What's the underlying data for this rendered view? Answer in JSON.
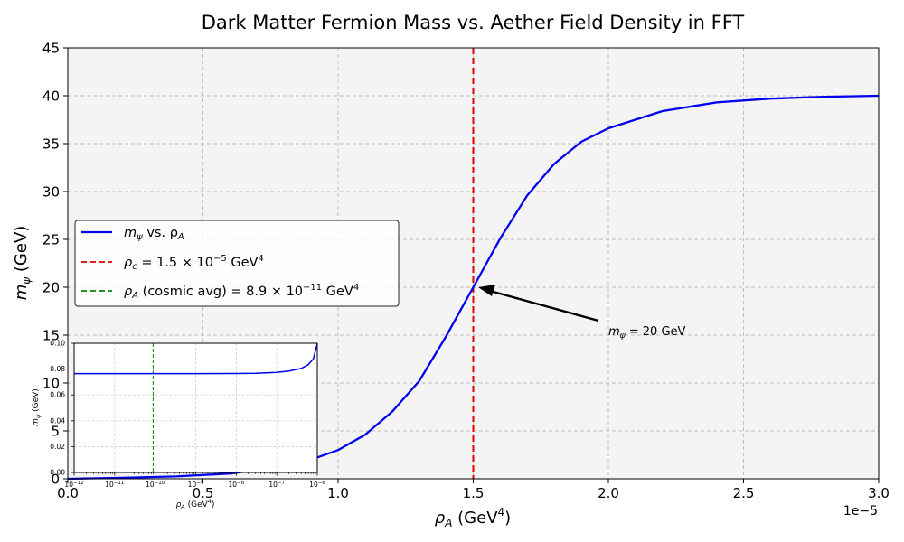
{
  "chart_data": [
    {
      "type": "line",
      "title": "Dark Matter Fermion Mass vs. Aether Field Density in FFT",
      "xlabel_main": "ρ",
      "xlabel_sub": "A",
      "xlabel_rest": " (GeV",
      "xlabel_sup": "4",
      "xlabel_end": ")",
      "ylabel_main": "m",
      "ylabel_sub": "ψ",
      "ylabel_rest": " (GeV)",
      "xlim": [
        0,
        3e-05
      ],
      "ylim": [
        0,
        45
      ],
      "x_ticks": [
        0,
        5e-06,
        1e-05,
        1.5e-05,
        2e-05,
        2.5e-05,
        3e-05
      ],
      "x_tick_labels": [
        "0.0",
        "0.5",
        "1.0",
        "1.5",
        "2.0",
        "2.5",
        "3.0"
      ],
      "x_offset_label": "1e−5",
      "y_ticks": [
        0,
        5,
        10,
        15,
        20,
        25,
        30,
        35,
        40,
        45
      ],
      "y_tick_labels": [
        "0",
        "5",
        "10",
        "15",
        "20",
        "25",
        "30",
        "35",
        "40",
        "45"
      ],
      "grid": true,
      "series": [
        {
          "name": "m_ψ vs. ρ_A",
          "color": "#0000ee",
          "x": [
            0,
            2e-06,
            4e-06,
            6e-06,
            8e-06,
            9e-06,
            1e-05,
            1.1e-05,
            1.2e-05,
            1.3e-05,
            1.4e-05,
            1.5e-05,
            1.6e-05,
            1.7e-05,
            1.8e-05,
            1.9e-05,
            2e-05,
            2.2e-05,
            2.4e-05,
            2.6e-05,
            2.8e-05,
            3e-05
          ],
          "y": [
            0.0,
            0.1,
            0.25,
            0.55,
            1.3,
            2.0,
            3.0,
            4.6,
            7.0,
            10.2,
            14.9,
            20.0,
            25.1,
            29.6,
            32.9,
            35.2,
            36.6,
            38.4,
            39.3,
            39.7,
            39.9,
            40.0
          ]
        }
      ],
      "vlines": [
        {
          "name": "ρ_c = 1.5 × 10^−5 GeV^4",
          "x": 1.5e-05,
          "color": "#e00000",
          "style": "dashed"
        },
        {
          "name": "ρ_A (cosmic avg) = 8.9 × 10^−11 GeV^4",
          "color": "#008800",
          "style": "dashed"
        }
      ],
      "legend": {
        "placement": "center-left",
        "entries": [
          {
            "main": "m",
            "sub": "ψ",
            "rest": " vs. ρ",
            "sub2": "A",
            "tail": ""
          },
          {
            "main": "ρ",
            "sub": "c",
            "rest": " = 1.5 × 10",
            "sup": "−5",
            "rest2": " GeV",
            "sup2": "4"
          },
          {
            "main": "ρ",
            "sub": "A",
            "rest": " (cosmic avg) = 8.9 × 10",
            "sup": "−11",
            "rest2": " GeV",
            "sup2": "4"
          }
        ]
      },
      "annotation": {
        "text_main": "m",
        "text_sub": "ψ",
        "text_rest": " = 20 GeV",
        "point": [
          1.5e-05,
          20
        ],
        "text_at": [
          2e-05,
          15.2
        ]
      }
    },
    {
      "type": "line",
      "title": "",
      "xlabel_main": "ρ",
      "xlabel_sub": "A",
      "xlabel_rest": " (GeV",
      "xlabel_sup": "4",
      "xlabel_end": ")",
      "ylabel_main": "m",
      "ylabel_sub": "ψ",
      "ylabel_rest": " (GeV)",
      "x_scale": "log",
      "xlim": [
        1e-12,
        1e-06
      ],
      "ylim": [
        0,
        0.1
      ],
      "x_tick_labels": [
        {
          "base": "10",
          "exp": "−12"
        },
        {
          "base": "10",
          "exp": "−11"
        },
        {
          "base": "10",
          "exp": "−10"
        },
        {
          "base": "10",
          "exp": "−9"
        },
        {
          "base": "10",
          "exp": "−8"
        },
        {
          "base": "10",
          "exp": "−7"
        },
        {
          "base": "10",
          "exp": "−6"
        }
      ],
      "y_tick_labels": [
        "0.00",
        "0.02",
        "0.04",
        "0.06",
        "0.08",
        "0.10"
      ],
      "y_ticks": [
        0,
        0.02,
        0.04,
        0.06,
        0.08,
        0.1
      ],
      "grid": true,
      "series": [
        {
          "color": "#0000ee",
          "x": [
            1e-12,
            1e-11,
            1e-10,
            1e-09,
            1e-08,
            3e-08,
            1e-07,
            2e-07,
            4e-07,
            6e-07,
            8e-07,
            1e-06
          ],
          "y": [
            0.0765,
            0.0765,
            0.0765,
            0.0765,
            0.0766,
            0.0768,
            0.0775,
            0.0785,
            0.0805,
            0.0835,
            0.088,
            0.0995
          ]
        }
      ],
      "vline": {
        "x": 8.9e-11,
        "color": "#008800",
        "style": "dashed"
      }
    }
  ]
}
